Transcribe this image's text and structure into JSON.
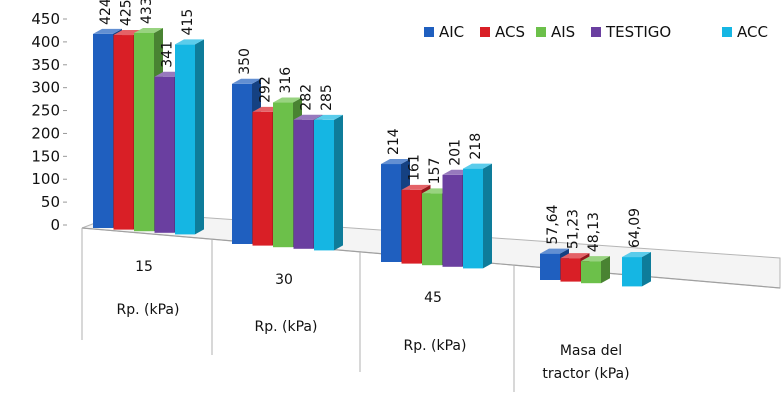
{
  "chart_data": {
    "type": "bar",
    "categories": [
      [
        "15",
        "Rp. (kPa)"
      ],
      [
        "30",
        "Rp. (kPa)"
      ],
      [
        "45",
        "Rp. (kPa)"
      ],
      [
        "Masa del",
        "tractor (kPa)"
      ]
    ],
    "series": [
      {
        "name": "AIC",
        "color": "#1f5fbf",
        "values": [
          424,
          350,
          214,
          57.64
        ],
        "labels": [
          "424",
          "350",
          "214",
          "57,64"
        ]
      },
      {
        "name": "ACS",
        "color": "#d91f26",
        "values": [
          425,
          292,
          161,
          51.23
        ],
        "labels": [
          "425",
          "292",
          "161",
          "51,23"
        ]
      },
      {
        "name": "AIS",
        "color": "#6cc04a",
        "values": [
          433,
          316,
          157,
          48.13
        ],
        "labels": [
          "433",
          "316",
          "157",
          "48,13"
        ]
      },
      {
        "name": "TESTIGO",
        "color": "#6a3fa0",
        "values": [
          341,
          282,
          201,
          null
        ],
        "labels": [
          "341",
          "282",
          "201",
          ""
        ]
      },
      {
        "name": "ACC",
        "color": "#15b6e3",
        "values": [
          415,
          285,
          218,
          64.09
        ],
        "labels": [
          "415",
          "285",
          "218",
          "64,09"
        ]
      }
    ],
    "y_ticks": [
      "0",
      "50",
      "100",
      "150",
      "200",
      "250",
      "300",
      "350",
      "400",
      "450"
    ],
    "ylim": [
      0,
      450
    ],
    "legend": "top-right",
    "grid": false
  }
}
